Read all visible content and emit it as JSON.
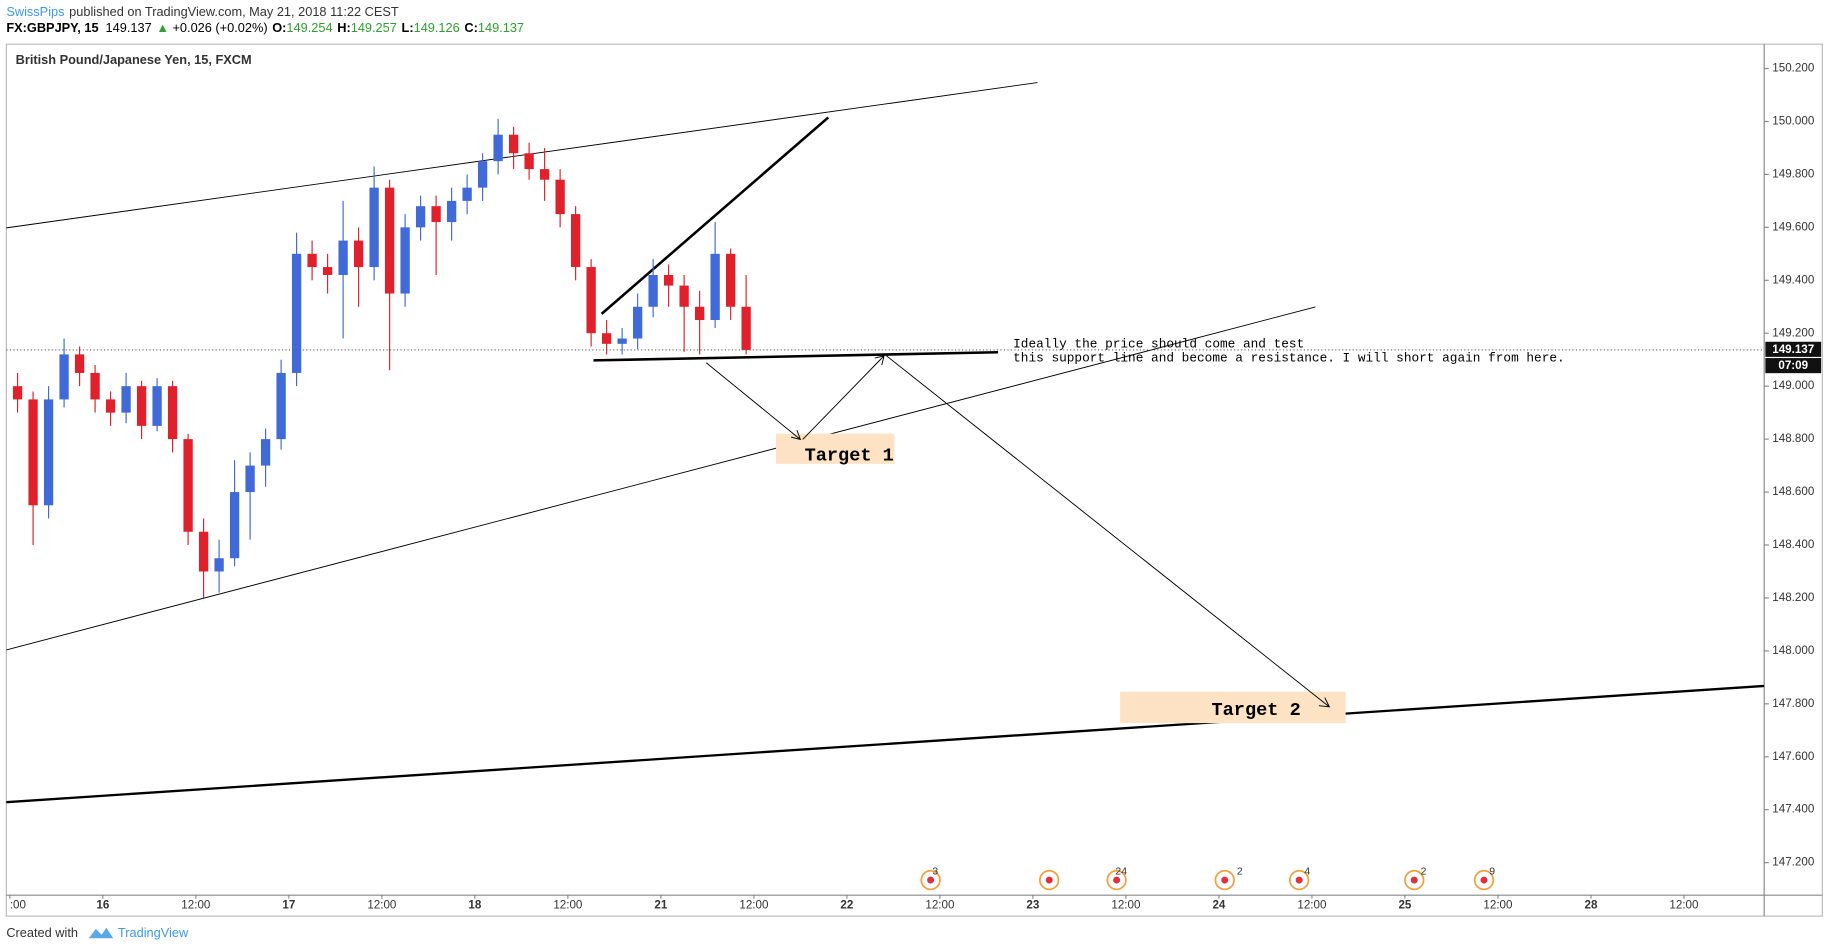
{
  "header": {
    "author": "SwissPips",
    "published": "published on TradingView.com, May 21, 2018 11:22 CEST",
    "symbol": "FX:GBPJPY, 15",
    "last": "149.137",
    "arrow": "▲",
    "change": "+0.026 (+0.02%)",
    "o_label": "O:",
    "open": "149.254",
    "h_label": "H:",
    "high": "149.257",
    "l_label": "L:",
    "low": "149.126",
    "c_label": "C:",
    "close": "149.137"
  },
  "chart_data": {
    "type": "candlestick",
    "title": "British Pound/Japanese Yen, 15, FXCM",
    "x": [
      1,
      3,
      5,
      7,
      9,
      11,
      13,
      15,
      17,
      19,
      21,
      23,
      25,
      27,
      29,
      31,
      33,
      35,
      37,
      39,
      41,
      43,
      45,
      47,
      49,
      51,
      53,
      55,
      57,
      59,
      61,
      63,
      65,
      67,
      69,
      71,
      73,
      75,
      77,
      79,
      81,
      83,
      85,
      87,
      89,
      91,
      93,
      95
    ],
    "open": [
      149.0,
      148.95,
      148.55,
      148.95,
      149.12,
      149.05,
      148.95,
      148.9,
      149.0,
      148.85,
      149.0,
      148.8,
      148.45,
      148.3,
      148.35,
      148.6,
      148.7,
      148.8,
      149.05,
      149.5,
      149.45,
      149.42,
      149.55,
      149.45,
      149.75,
      149.35,
      149.6,
      149.68,
      149.62,
      149.7,
      149.75,
      149.85,
      149.95,
      149.88,
      149.82,
      149.78,
      149.65,
      149.45,
      149.2,
      149.16,
      149.18,
      149.3,
      149.42,
      149.38,
      149.3,
      149.25,
      149.5,
      149.3
    ],
    "high": [
      149.05,
      148.98,
      149.0,
      149.18,
      149.15,
      149.08,
      148.98,
      149.05,
      149.02,
      149.03,
      149.02,
      148.82,
      148.5,
      148.42,
      148.72,
      148.75,
      148.84,
      149.1,
      149.58,
      149.55,
      149.5,
      149.7,
      149.6,
      149.83,
      149.78,
      149.65,
      149.72,
      149.72,
      149.75,
      149.8,
      149.88,
      150.01,
      149.98,
      149.92,
      149.9,
      149.82,
      149.68,
      149.48,
      149.25,
      149.22,
      149.35,
      149.48,
      149.46,
      149.42,
      149.36,
      149.62,
      149.52,
      149.42
    ],
    "low": [
      148.9,
      148.4,
      148.5,
      148.92,
      149.0,
      148.9,
      148.85,
      148.86,
      148.8,
      148.83,
      148.75,
      148.4,
      148.2,
      148.22,
      148.32,
      148.42,
      148.62,
      148.76,
      149.0,
      149.4,
      149.35,
      149.18,
      149.3,
      149.4,
      149.06,
      149.3,
      149.55,
      149.42,
      149.55,
      149.65,
      149.7,
      149.8,
      149.82,
      149.78,
      149.7,
      149.6,
      149.4,
      149.15,
      149.12,
      149.12,
      149.14,
      149.26,
      149.3,
      149.13,
      149.12,
      149.22,
      149.25,
      149.12
    ],
    "close": [
      148.95,
      148.55,
      148.95,
      149.12,
      149.05,
      148.95,
      148.9,
      149.0,
      148.85,
      149.0,
      148.8,
      148.45,
      148.3,
      148.35,
      148.6,
      148.7,
      148.8,
      149.05,
      149.5,
      149.45,
      149.42,
      149.55,
      149.45,
      149.75,
      149.35,
      149.6,
      149.68,
      149.62,
      149.7,
      149.75,
      149.85,
      149.95,
      149.88,
      149.82,
      149.78,
      149.65,
      149.45,
      149.2,
      149.16,
      149.18,
      149.3,
      149.42,
      149.38,
      149.3,
      149.25,
      149.5,
      149.3,
      149.137
    ],
    "up_color": "#3f6ad8",
    "down_color": "#e0202a",
    "xlim": [
      -0.45,
      226.35
    ],
    "xticks": [
      {
        "value": 0,
        "label": ":00"
      },
      {
        "value": 12,
        "label": "16"
      },
      {
        "value": 24,
        "label": "12:00"
      },
      {
        "value": 36,
        "label": "17"
      },
      {
        "value": 48,
        "label": "12:00"
      },
      {
        "value": 60,
        "label": "18"
      },
      {
        "value": 72,
        "label": "12:00"
      },
      {
        "value": 84,
        "label": "21"
      },
      {
        "value": 96,
        "label": "12:00"
      },
      {
        "value": 108,
        "label": "22"
      },
      {
        "value": 120,
        "label": "12:00"
      },
      {
        "value": 132,
        "label": "23"
      },
      {
        "value": 144,
        "label": "12:00"
      },
      {
        "value": 156,
        "label": "24"
      },
      {
        "value": 168,
        "label": "12:00"
      },
      {
        "value": 180,
        "label": "25"
      },
      {
        "value": 192,
        "label": "12:00"
      },
      {
        "value": 204,
        "label": "28"
      },
      {
        "value": 216,
        "label": "12:00"
      }
    ],
    "ylim": [
      147.077,
      150.292
    ],
    "yticks": [
      {
        "value": 147.2,
        "label": "147.200"
      },
      {
        "value": 147.4,
        "label": "147.400"
      },
      {
        "value": 147.6,
        "label": "147.600"
      },
      {
        "value": 147.8,
        "label": "147.800"
      },
      {
        "value": 148.0,
        "label": "148.000"
      },
      {
        "value": 148.2,
        "label": "148.200"
      },
      {
        "value": 148.4,
        "label": "148.400"
      },
      {
        "value": 148.6,
        "label": "148.600"
      },
      {
        "value": 148.8,
        "label": "148.800"
      },
      {
        "value": 149.0,
        "label": "149.000"
      },
      {
        "value": 149.2,
        "label": "149.200"
      },
      {
        "value": 149.4,
        "label": "149.400"
      },
      {
        "value": 149.6,
        "label": "149.600"
      },
      {
        "value": 149.8,
        "label": "149.800"
      },
      {
        "value": 150.0,
        "label": "150.000"
      },
      {
        "value": 150.2,
        "label": "150.200"
      }
    ],
    "grid": false,
    "last_price": 149.137,
    "countdown": "07:09",
    "annotation": [
      "Ideally the price should come and test",
      "this support line and become a resistance. I will short again from here."
    ],
    "targets": [
      "Target 1",
      "Target 2"
    ],
    "events": [
      "3",
      "24",
      "2",
      "4",
      "2",
      "9"
    ]
  },
  "footer": {
    "created": "Created with",
    "brand": "TradingView"
  }
}
